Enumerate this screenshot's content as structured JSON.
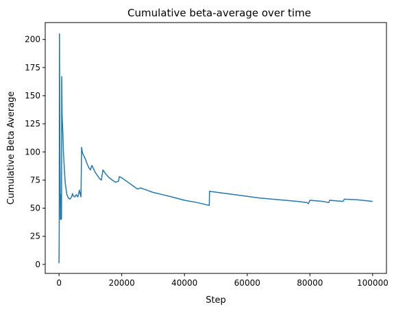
{
  "chart_data": {
    "type": "line",
    "title": "Cumulative beta-average over time",
    "xlabel": "Step",
    "ylabel": "Cumulative Beta Average",
    "xlim": [
      -4400,
      104400
    ],
    "ylim": [
      -8,
      215
    ],
    "x_ticks": [
      {
        "value": 0,
        "label": "0"
      },
      {
        "value": 20000,
        "label": "20000"
      },
      {
        "value": 40000,
        "label": "40000"
      },
      {
        "value": 60000,
        "label": "60000"
      },
      {
        "value": 80000,
        "label": "80000"
      },
      {
        "value": 100000,
        "label": "100000"
      }
    ],
    "y_ticks": [
      {
        "value": 0,
        "label": "0"
      },
      {
        "value": 25,
        "label": "25"
      },
      {
        "value": 50,
        "label": "50"
      },
      {
        "value": 75,
        "label": "75"
      },
      {
        "value": 100,
        "label": "100"
      },
      {
        "value": 125,
        "label": "125"
      },
      {
        "value": 150,
        "label": "150"
      },
      {
        "value": 175,
        "label": "175"
      },
      {
        "value": 200,
        "label": "200"
      }
    ],
    "grid": false,
    "legend": "none",
    "series": [
      {
        "color": "#1f77b4",
        "x": [
          0,
          60,
          80,
          100,
          130,
          150,
          200,
          250,
          300,
          400,
          450,
          500,
          550,
          600,
          700,
          800,
          850,
          900,
          950,
          1000,
          1100,
          1200,
          1300,
          1400,
          1600,
          1800,
          2000,
          2500,
          3000,
          3500,
          4000,
          4300,
          4500,
          5000,
          5500,
          6000,
          6500,
          6800,
          7000,
          7200,
          7300,
          7500,
          8000,
          8500,
          9000,
          9500,
          10000,
          10500,
          11000,
          11500,
          12000,
          13000,
          13500,
          14000,
          15000,
          16000,
          17000,
          18000,
          19000,
          19200,
          20000,
          22000,
          24000,
          25000,
          26000,
          28000,
          30000,
          33000,
          36000,
          40000,
          44000,
          47800,
          47900,
          48000,
          52000,
          56000,
          60000,
          64000,
          68000,
          72000,
          76000,
          79000,
          79500,
          80000,
          84000,
          86000,
          86300,
          90500,
          91000,
          95000,
          100000
        ],
        "y": [
          1,
          25,
          60,
          120,
          205,
          204,
          160,
          120,
          95,
          60,
          40,
          55,
          62,
          42,
          40,
          41,
          167,
          160,
          140,
          131,
          125,
          118,
          110,
          100,
          90,
          80,
          72,
          62,
          59,
          58,
          60,
          63,
          61,
          60,
          62,
          60,
          66,
          62,
          60,
          104,
          102,
          99,
          96,
          93,
          89,
          86,
          84,
          88,
          85,
          82,
          80,
          76,
          75,
          84,
          80,
          77,
          75,
          73,
          74,
          78,
          77,
          73,
          69,
          67,
          68,
          66,
          64,
          62,
          60,
          57,
          55,
          52.5,
          52.5,
          65,
          63.5,
          62,
          60.5,
          59,
          58,
          57,
          56,
          55,
          54,
          57,
          56,
          55,
          57,
          56,
          58,
          57.5,
          56
        ]
      }
    ]
  }
}
